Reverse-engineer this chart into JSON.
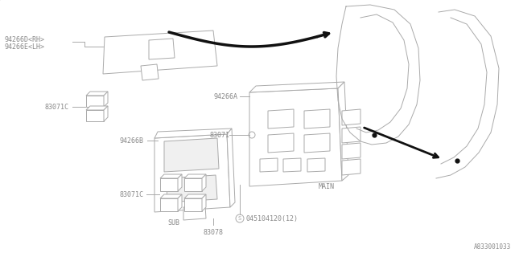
{
  "bg_color": "#ffffff",
  "line_color": "#aaaaaa",
  "text_color": "#888888",
  "arrow_color": "#111111",
  "title_ref": "A833001033",
  "labels": {
    "94266D_RH": "94266D<RH>",
    "94266E_LH": "94266E<LH>",
    "83071C_top": "83071C",
    "94266A": "94266A",
    "94266B": "94266B",
    "83071": "83071",
    "83071C_bot": "83071C",
    "83078": "83078",
    "screw": "045104120(12)",
    "MAIN": "MAIN",
    "SUB": "SUB"
  }
}
